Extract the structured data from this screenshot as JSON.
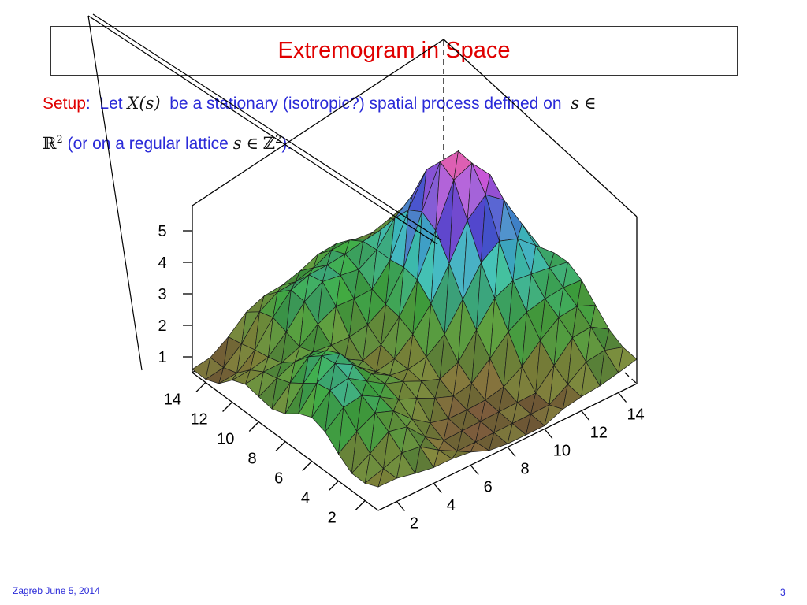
{
  "slide": {
    "title": "Extremogram in Space",
    "setup_label": "Setup",
    "setup_colon": ":",
    "let_text": "Let",
    "var_x": "X(s)",
    "desc_text": "be a stationary (isotropic?) spatial process defined on",
    "var_s": "s",
    "elem_sym": "∈",
    "reals": "ℝ",
    "sq": "2",
    "lattice_text": "(or on a regular lattice",
    "var_s2": "s",
    "elem_sym2": "∈",
    "integers": "ℤ",
    "sq2": "2",
    "close_text": ")."
  },
  "footer": {
    "left": "Zagreb June 5, 2014",
    "page_number": "3"
  },
  "colors": {
    "title": "#e00000",
    "setup": "#e00000",
    "body": "#2a2ad8",
    "footer": "#2a2ad8"
  },
  "chart_data": {
    "type": "surface",
    "title": "",
    "grid_size": 15,
    "z_ticks": [
      "1",
      "2",
      "3",
      "4",
      "5"
    ],
    "x_ticks": [
      "2",
      "4",
      "6",
      "8",
      "10",
      "12",
      "14"
    ],
    "y_ticks": [
      "2",
      "4",
      "6",
      "8",
      "10",
      "12",
      "14"
    ],
    "zlim": [
      0.5,
      5.8
    ],
    "peak_z": 5.3
  }
}
